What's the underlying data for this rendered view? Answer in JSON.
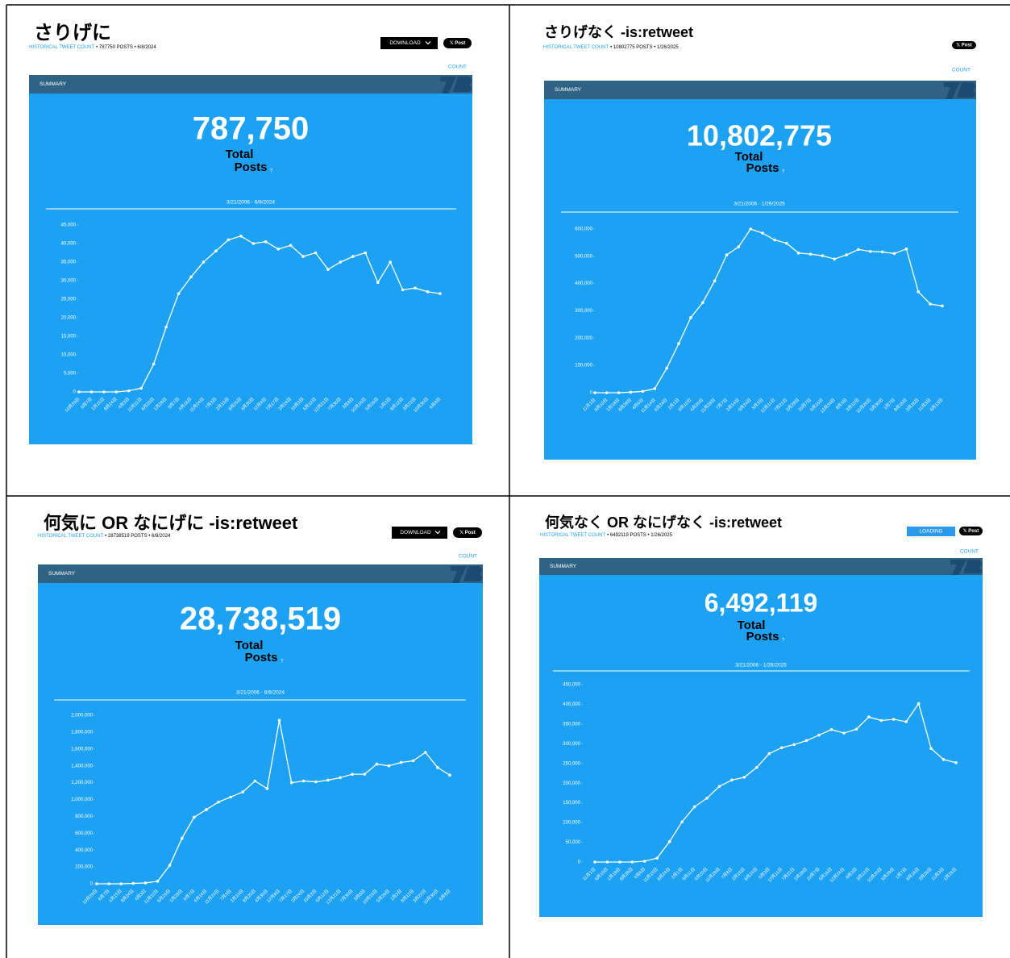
{
  "chart_data": [
    {
      "type": "line",
      "title": "さりげに",
      "subtitle_link": "HISTORICAL TWEET COUNT",
      "subtitle": "• 787750 POSTS • 6/8/2024",
      "button": "DOWNLOAD",
      "post": "𝕏 Post",
      "count_label": "COUNT",
      "summary": "SUMMARY",
      "total": "787,750",
      "total_label": "Total",
      "posts_label": "Posts",
      "help": "?",
      "date_range": "3/21/2006 - 6/8/2024",
      "color": "#ffffff",
      "categories": [
        "10月29日",
        "6月7日",
        "1月15日",
        "8月24日",
        "4月3日",
        "11月11日",
        "6月20日",
        "1月28日",
        "9月7日",
        "4月16日",
        "11月24日",
        "7月3日",
        "2月10日",
        "9月20日",
        "4月30日",
        "12月8日",
        "7月17日",
        "2月24日",
        "10月3日",
        "5月12日",
        "12月21日",
        "7月30日",
        "3月8日",
        "10月16日",
        "5月26日",
        "1月3日",
        "8月12日",
        "3月22日",
        "10月30日",
        "6月8日"
      ],
      "values": [
        0,
        0,
        0,
        0,
        300,
        1000,
        7500,
        17500,
        26500,
        31000,
        35000,
        38000,
        41000,
        42000,
        40000,
        40500,
        38500,
        39500,
        36500,
        37500,
        33000,
        35000,
        36500,
        37500,
        29500,
        35000,
        27500,
        28000,
        27000,
        26500
      ],
      "ylim": [
        0,
        45000
      ],
      "yticks": [
        0,
        {
          "value": 5000,
          "label": "5,000"
        },
        {
          "value": 10000,
          "label": "10,000"
        },
        {
          "value": 15000,
          "label": "15,000"
        },
        {
          "value": 20000,
          "label": "20,000"
        },
        {
          "value": 25000,
          "label": "25,000"
        },
        {
          "value": 30000,
          "label": "30,000"
        },
        {
          "value": 35000,
          "label": "35,000"
        },
        {
          "value": 40000,
          "label": "40,000"
        },
        {
          "value": 45000,
          "label": "45,000"
        }
      ]
    },
    {
      "type": "line",
      "title": "さりげなく -is:retweet",
      "subtitle_link": "HISTORICAL TWEET COUNT",
      "subtitle": "• 10802775 POSTS • 1/26/2025",
      "post": "𝕏 Post",
      "count_label": "COUNT",
      "summary": "SUMMARY",
      "total": "10,802,775",
      "total_label": "Total",
      "posts_label": "Posts",
      "help": "?",
      "date_range": "3/21/2006 - 1/26/2025",
      "color": "#ffffff",
      "categories": [
        "11月1日",
        "6月10日",
        "1月18日",
        "8月28日",
        "4月6日",
        "11月14日",
        "6月24日",
        "2月1日",
        "9月10日",
        "4月20日",
        "11月28日",
        "7月7日",
        "2月14日",
        "9月24日",
        "5月3日",
        "12月11日",
        "7月21日",
        "2月28日",
        "10月7日",
        "5月16日",
        "12月24日",
        "8月3日",
        "3月12日",
        "10月20日",
        "5月30日",
        "1月7日",
        "8月16日",
        "3月26日",
        "11月3日",
        "6月13日"
      ],
      "values": [
        0,
        0,
        0,
        2000,
        5000,
        15000,
        90000,
        180000,
        275000,
        330000,
        410000,
        505000,
        535000,
        600000,
        585000,
        560000,
        548000,
        512000,
        508000,
        502000,
        490000,
        505000,
        525000,
        518000,
        516000,
        510000,
        527000,
        370000,
        325000,
        318000
      ],
      "ylim": [
        0,
        600000
      ],
      "yticks": [
        0,
        {
          "value": 100000,
          "label": "100,000"
        },
        {
          "value": 200000,
          "label": "200,000"
        },
        {
          "value": 300000,
          "label": "300,000"
        },
        {
          "value": 400000,
          "label": "400,000"
        },
        {
          "value": 500000,
          "label": "500,000"
        },
        {
          "value": 600000,
          "label": "600,000"
        }
      ]
    },
    {
      "type": "line",
      "title": "何気に OR なにげに -is:retweet",
      "subtitle_link": "HISTORICAL TWEET COUNT",
      "subtitle": "• 28738519 POSTS • 6/8/2024",
      "button": "DOWNLOAD",
      "post": "𝕏 Post",
      "count_label": "COUNT",
      "summary": "SUMMARY",
      "total": "28,738,519",
      "total_label": "Total",
      "posts_label": "Posts",
      "help": "?",
      "date_range": "3/21/2006 - 6/8/2024",
      "color": "#ffffff",
      "categories": [
        "10月29日",
        "6月7日",
        "1月15日",
        "8月24日",
        "4月3日",
        "11月11日",
        "6月20日",
        "1月28日",
        "9月7日",
        "4月16日",
        "11月24日",
        "7月3日",
        "2月10日",
        "9月20日",
        "4月30日",
        "12月8日",
        "7月17日",
        "2月24日",
        "10月3日",
        "5月12日",
        "12月21日",
        "7月30日",
        "3月8日",
        "10月16日",
        "5月26日",
        "1月3日",
        "8月12日",
        "3月22日",
        "10月30日",
        "6月8日"
      ],
      "values": [
        0,
        0,
        0,
        5000,
        10000,
        30000,
        220000,
        540000,
        790000,
        880000,
        970000,
        1030000,
        1090000,
        1220000,
        1130000,
        1940000,
        1200000,
        1220000,
        1210000,
        1230000,
        1260000,
        1300000,
        1300000,
        1420000,
        1400000,
        1440000,
        1460000,
        1560000,
        1380000,
        1290000
      ],
      "ylim": [
        0,
        2000000
      ],
      "yticks": [
        0,
        {
          "value": 200000,
          "label": "200,000"
        },
        {
          "value": 400000,
          "label": "400,000"
        },
        {
          "value": 600000,
          "label": "600,000"
        },
        {
          "value": 800000,
          "label": "800,000"
        },
        {
          "value": 1000000,
          "label": "1,000,000"
        },
        {
          "value": 1200000,
          "label": "1,200,000"
        },
        {
          "value": 1400000,
          "label": "1,400,000"
        },
        {
          "value": 1600000,
          "label": "1,600,000"
        },
        {
          "value": 1800000,
          "label": "1,800,000"
        },
        {
          "value": 2000000,
          "label": "2,000,000"
        }
      ]
    },
    {
      "type": "line",
      "title": "何気なく OR なにげなく -is:retweet",
      "subtitle_link": "HISTORICAL TWEET COUNT",
      "subtitle": "• 6492119 POSTS • 1/26/2025",
      "button": "LOADING",
      "post": "𝕏 Post",
      "count_label": "COUNT",
      "summary": "SUMMARY",
      "total": "6,492,119",
      "total_label": "Total",
      "posts_label": "Posts",
      "help": "?",
      "date_range": "3/21/2006 - 1/26/2025",
      "color": "#ffffff",
      "categories": [
        "11月1日",
        "6月10日",
        "1月19日",
        "8月28日",
        "4月6日",
        "11月15日",
        "6月24日",
        "2月1日",
        "9月11日",
        "4月20日",
        "11月28日",
        "7月8日",
        "2月15日",
        "9月24日",
        "5月3日",
        "12月11日",
        "7月21日",
        "2月28日",
        "10月7日",
        "5月16日",
        "12月24日",
        "8月3日",
        "3月12日",
        "10月20日",
        "5月29日",
        "1月7日",
        "8月16日",
        "3月26日",
        "11月3日",
        "1月26日"
      ],
      "values": [
        0,
        0,
        0,
        0,
        2000,
        10000,
        52000,
        102000,
        140000,
        162000,
        192000,
        208000,
        215000,
        240000,
        275000,
        290000,
        298000,
        308000,
        322000,
        336000,
        327000,
        337000,
        368000,
        359000,
        362000,
        356000,
        402000,
        288000,
        260000,
        252000
      ],
      "ylim": [
        0,
        450000
      ],
      "yticks": [
        0,
        {
          "value": 50000,
          "label": "50,000"
        },
        {
          "value": 100000,
          "label": "100,000"
        },
        {
          "value": 150000,
          "label": "150,000"
        },
        {
          "value": 200000,
          "label": "200,000"
        },
        {
          "value": 250000,
          "label": "250,000"
        },
        {
          "value": 300000,
          "label": "300,000"
        },
        {
          "value": 350000,
          "label": "350,000"
        },
        {
          "value": 400000,
          "label": "400,000"
        },
        {
          "value": 450000,
          "label": "450,000"
        }
      ]
    }
  ]
}
